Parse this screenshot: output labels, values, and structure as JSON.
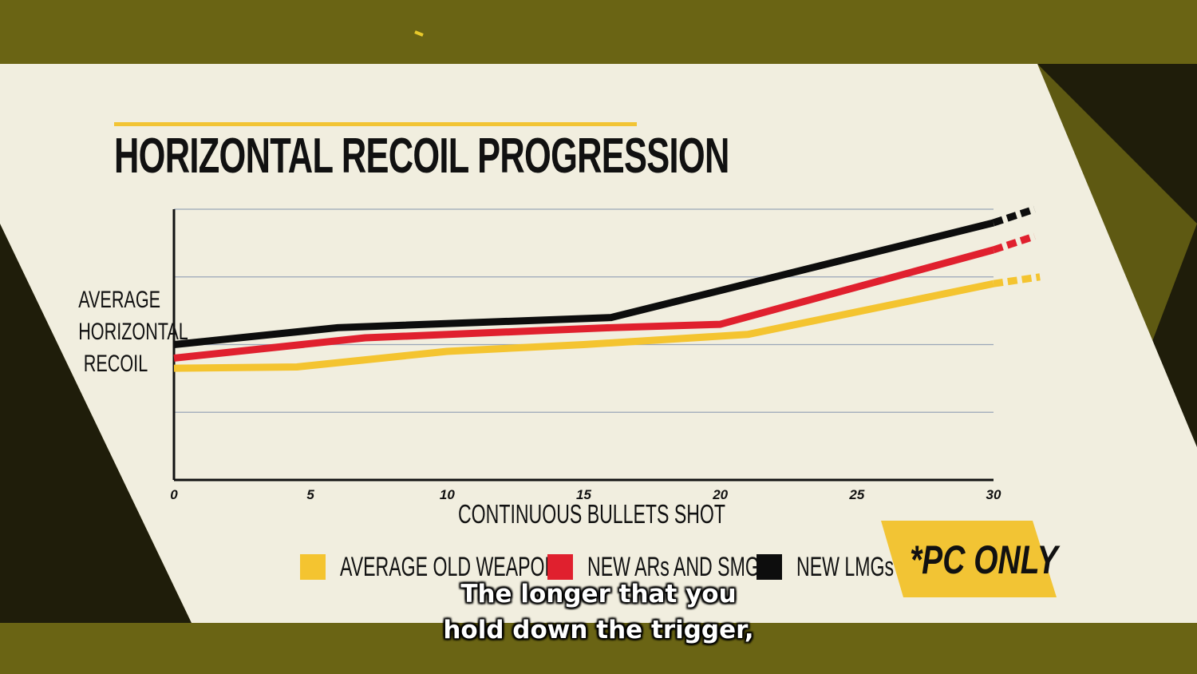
{
  "chart_data": {
    "type": "line",
    "title": "HORIZONTAL RECOIL PROGRESSION",
    "xlabel": "CONTINUOUS BULLETS SHOT",
    "ylabel": "AVERAGE\nHORIZONTAL\nRECOIL",
    "x_ticks": [
      0,
      5,
      10,
      15,
      20,
      25,
      30
    ],
    "xlim": [
      0,
      30
    ],
    "ylim": [
      0,
      4
    ],
    "grid": true,
    "legend_position": "bottom",
    "series": [
      {
        "name": "AVERAGE OLD WEAPONS",
        "color": "#f4c430",
        "x": [
          0,
          4.5,
          10,
          15,
          21,
          30
        ],
        "y": [
          1.65,
          1.67,
          1.9,
          2.0,
          2.15,
          2.9
        ],
        "extension": [
          31.7,
          3.0
        ]
      },
      {
        "name": "NEW ARs AND SMGs",
        "color": "#e0202e",
        "x": [
          0,
          7,
          16,
          20,
          30
        ],
        "y": [
          1.8,
          2.1,
          2.25,
          2.3,
          3.4
        ],
        "extension": [
          31.5,
          3.6
        ]
      },
      {
        "name": "NEW LMGs",
        "color": "#0d0d0d",
        "x": [
          0,
          6,
          16,
          30
        ],
        "y": [
          2.0,
          2.25,
          2.4,
          3.8
        ],
        "extension": [
          31.5,
          4.0
        ]
      }
    ]
  },
  "badge": {
    "text": "*PC ONLY",
    "color": "#f2c434"
  },
  "subtitles": [
    "The longer that you",
    "hold down the trigger,"
  ]
}
